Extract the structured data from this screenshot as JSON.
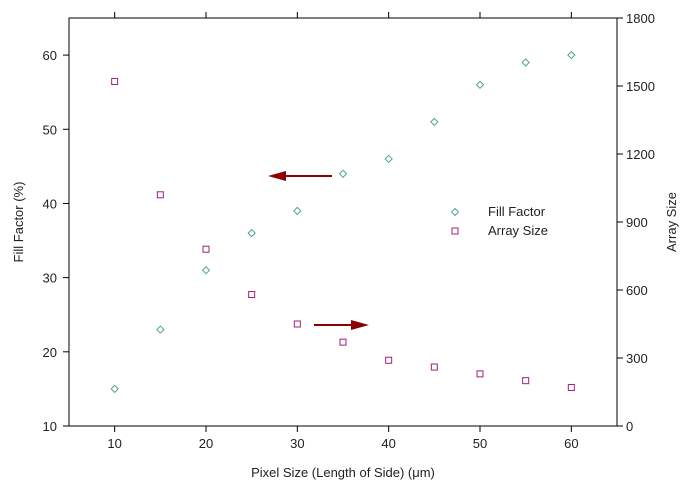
{
  "chart_data": {
    "type": "scatter",
    "xlabel": "Pixel Size (Length of Side) (μm)",
    "ylabel_left": "Fill Factor (%)",
    "ylabel_right": "Array Size",
    "xlim": [
      5,
      65
    ],
    "ylim_left": [
      10,
      65
    ],
    "ylim_right": [
      0,
      1800
    ],
    "x_ticks": [
      "10",
      "20",
      "30",
      "40",
      "50",
      "60"
    ],
    "y_ticks_left": [
      "10",
      "20",
      "30",
      "40",
      "50",
      "60"
    ],
    "y_ticks_right": [
      "0",
      "300",
      "600",
      "900",
      "1200",
      "1500",
      "1800"
    ],
    "grid": false,
    "legend_position": "right",
    "series": [
      {
        "name": "Fill Factor",
        "axis": "left",
        "marker": "diamond",
        "color": "#4fa39a",
        "x": [
          10,
          15,
          20,
          25,
          30,
          35,
          40,
          45,
          50,
          55,
          60
        ],
        "y": [
          15,
          23,
          31,
          36,
          39,
          44,
          46,
          51,
          56,
          59,
          60
        ]
      },
      {
        "name": "Array Size",
        "axis": "right",
        "marker": "square",
        "color": "#a0207a",
        "x": [
          10,
          15,
          20,
          25,
          30,
          35,
          40,
          45,
          50,
          55,
          60
        ],
        "y": [
          1520,
          1020,
          780,
          580,
          450,
          370,
          290,
          260,
          230,
          200,
          170
        ]
      }
    ],
    "annotations": [
      {
        "type": "arrow",
        "direction": "left",
        "points_to": "left axis",
        "color": "#8b0000"
      },
      {
        "type": "arrow",
        "direction": "right",
        "points_to": "right axis",
        "color": "#8b0000"
      }
    ]
  }
}
